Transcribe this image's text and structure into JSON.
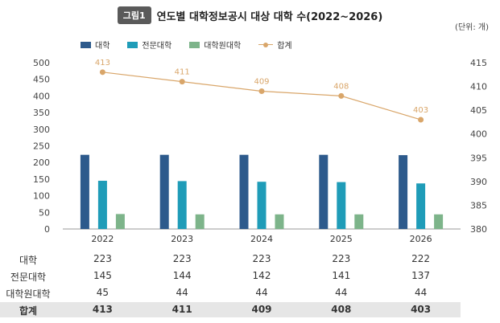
{
  "figure": {
    "badge": "그림1",
    "title": "연도별 대학정보공시 대상 대학 수(2022~2026)",
    "unit": "(단위: 개)"
  },
  "colors": {
    "univ": "#2d5a8c",
    "college": "#1f9cb8",
    "grad": "#7db48a",
    "total": "#d9a66a"
  },
  "legend": [
    "대학",
    "전문대학",
    "대학원대학",
    "합계"
  ],
  "chart_data": {
    "type": "bar",
    "categories": [
      "2022",
      "2023",
      "2024",
      "2025",
      "2026"
    ],
    "series": [
      {
        "name": "대학",
        "values": [
          223,
          223,
          223,
          223,
          222
        ],
        "axis": "left"
      },
      {
        "name": "전문대학",
        "values": [
          145,
          144,
          142,
          141,
          137
        ],
        "axis": "left"
      },
      {
        "name": "대학원대학",
        "values": [
          45,
          44,
          44,
          44,
          44
        ],
        "axis": "left"
      },
      {
        "name": "합계",
        "type": "line",
        "values": [
          413,
          411,
          409,
          408,
          403
        ],
        "axis": "right"
      }
    ],
    "y_left": {
      "range": [
        0,
        500
      ],
      "ticks": [
        "0",
        "50",
        "100",
        "150",
        "200",
        "250",
        "300",
        "350",
        "400",
        "450",
        "500"
      ]
    },
    "y_right": {
      "range": [
        380,
        415
      ],
      "ticks": [
        "380",
        "385",
        "390",
        "395",
        "400",
        "405",
        "410",
        "415"
      ]
    },
    "grid": false
  },
  "table": {
    "rows": [
      {
        "label": "대학",
        "values": [
          "223",
          "223",
          "223",
          "223",
          "222"
        ]
      },
      {
        "label": "전문대학",
        "values": [
          "145",
          "144",
          "142",
          "141",
          "137"
        ]
      },
      {
        "label": "대학원대학",
        "values": [
          "45",
          "44",
          "44",
          "44",
          "44"
        ]
      },
      {
        "label": "합계",
        "values": [
          "413",
          "411",
          "409",
          "408",
          "403"
        ]
      }
    ]
  }
}
